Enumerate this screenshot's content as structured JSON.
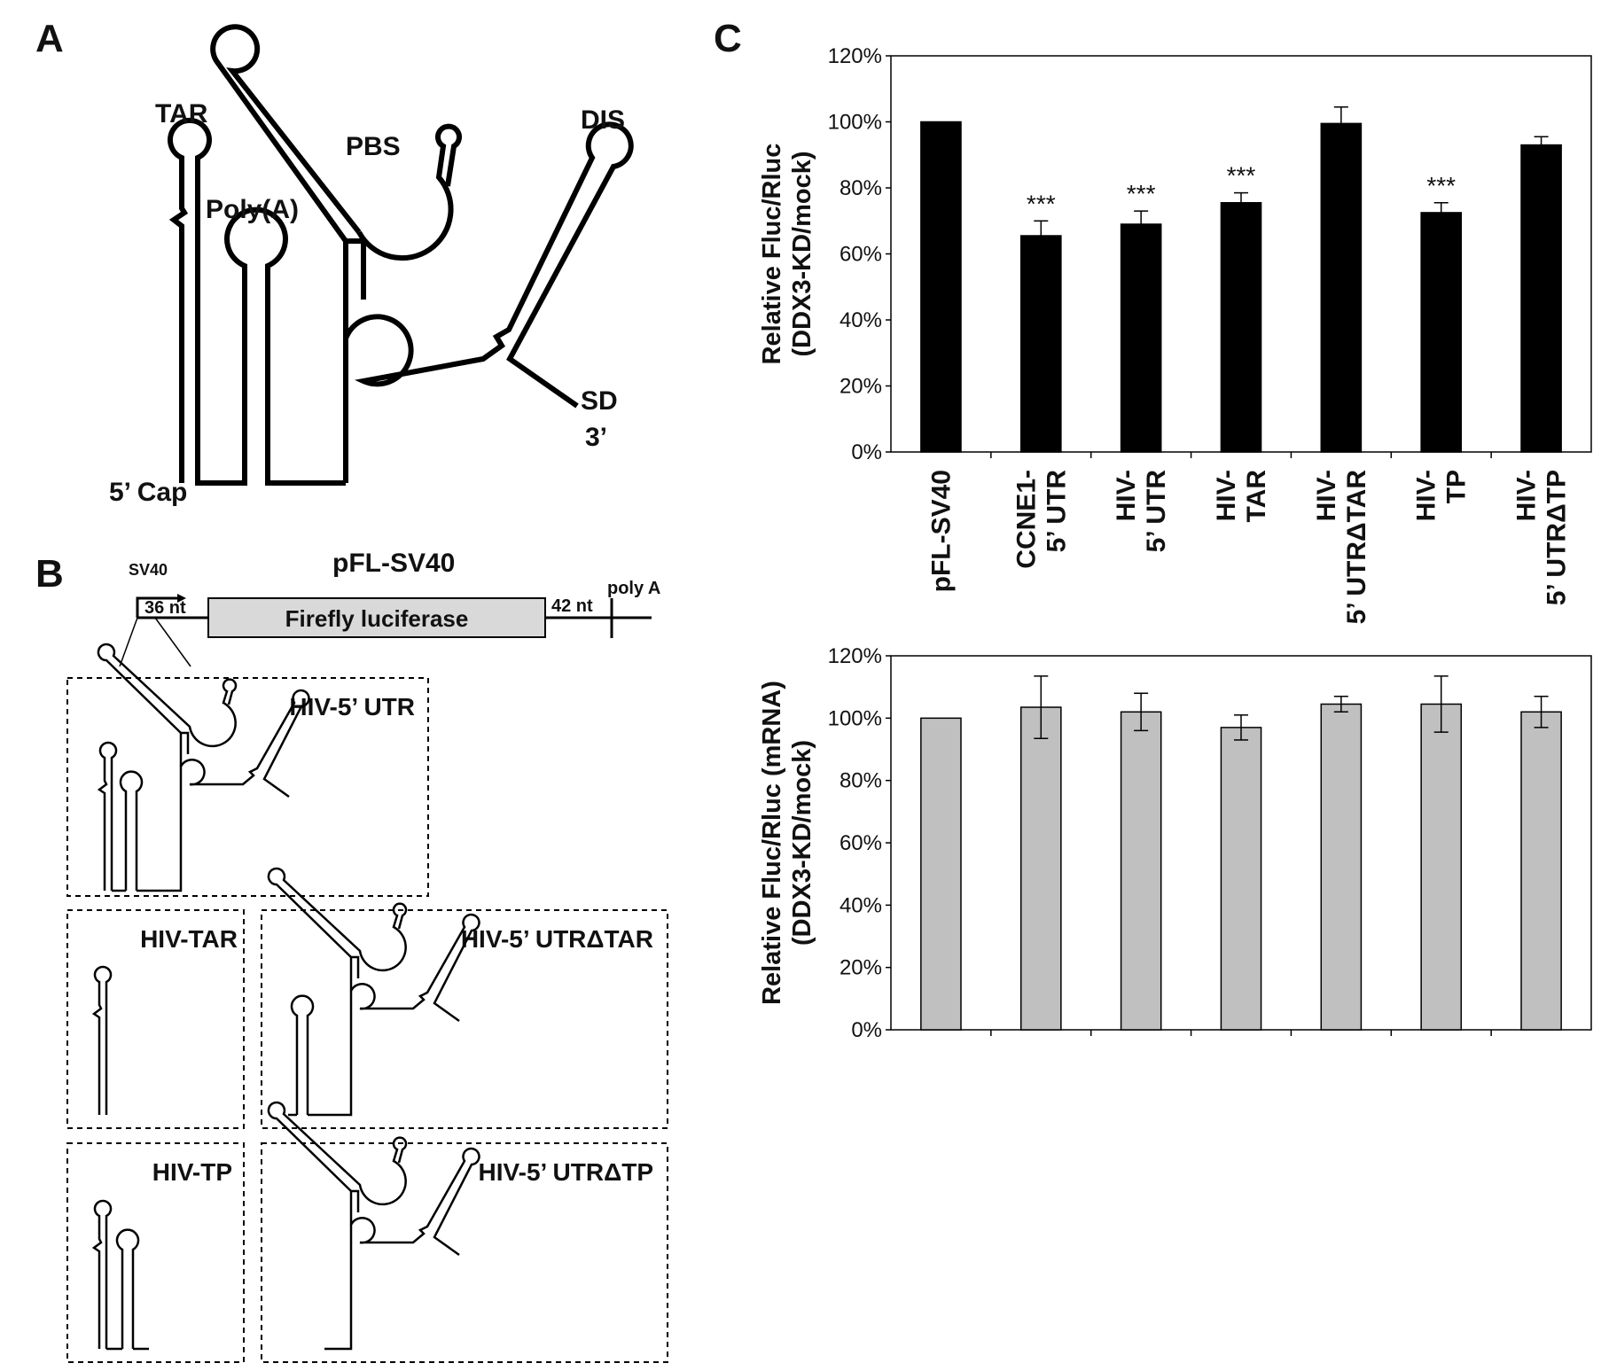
{
  "panel_a": {
    "letter": "A",
    "labels": {
      "tar": "TAR",
      "polya": "Poly(A)",
      "pbs": "PBS",
      "dis": "DIS",
      "sd": "SD",
      "three_prime": "3’",
      "cap": "5’ Cap"
    }
  },
  "panel_b": {
    "letter": "B",
    "construct": "pFL-SV40",
    "promoter": "SV40",
    "nt_left": "36 nt",
    "gene": "Firefly luciferase",
    "nt_right": "42 nt",
    "polya": "poly A",
    "boxes": {
      "utr": "HIV-5’ UTR",
      "tar": "HIV-TAR",
      "utr_dtar": "HIV-5’ UTRΔTAR",
      "tp": "HIV-TP",
      "utr_dtp": "HIV-5’ UTRΔTP"
    }
  },
  "panel_c": {
    "letter": "C",
    "sig": "***"
  },
  "chart_data": [
    {
      "type": "bar",
      "ylabel_line1": "Relative Fluc/Rluc",
      "ylabel_line2": "(DDX3-KD/mock)",
      "ylim": [
        0,
        120
      ],
      "yticks": [
        "0%",
        "20%",
        "40%",
        "60%",
        "80%",
        "100%",
        "120%"
      ],
      "bar_color": "#000000",
      "categories": [
        [
          "pFL-SV40"
        ],
        [
          "CCNE1-",
          "5’ UTR"
        ],
        [
          "HIV-",
          "5’ UTR"
        ],
        [
          "HIV-",
          "TAR"
        ],
        [
          "HIV-",
          "5’ UTRΔTAR"
        ],
        [
          "HIV-",
          "TP"
        ],
        [
          "HIV-",
          "5’ UTRΔTP"
        ]
      ],
      "values": [
        100,
        65.5,
        69,
        75.5,
        99.5,
        72.5,
        93
      ],
      "errors": [
        0,
        4.5,
        4,
        3,
        5,
        3,
        2.5
      ],
      "significance": [
        "",
        "***",
        "***",
        "***",
        "",
        "***",
        ""
      ]
    },
    {
      "type": "bar",
      "ylabel_line1": "Relative Fluc/Rluc (mRNA)",
      "ylabel_line2": "(DDX3-KD/mock)",
      "ylim": [
        0,
        120
      ],
      "yticks": [
        "0%",
        "20%",
        "40%",
        "60%",
        "80%",
        "100%",
        "120%"
      ],
      "bar_color": "#c0c0c0",
      "values": [
        100,
        103.5,
        102,
        97,
        104.5,
        104.5,
        102
      ],
      "errors": [
        0,
        10,
        6,
        4,
        2.5,
        9,
        5
      ]
    }
  ]
}
